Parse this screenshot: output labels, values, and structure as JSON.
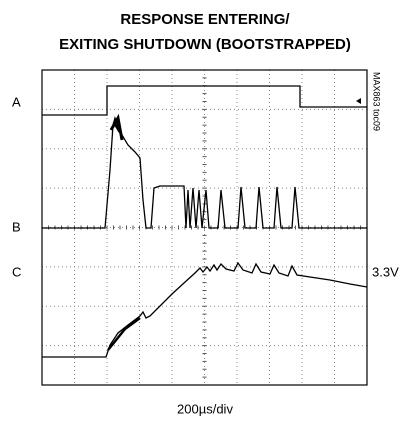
{
  "title": [
    "RESPONSE ENTERING/",
    "EXITING SHUTDOWN (BOOTSTRAPPED)"
  ],
  "channels": [
    "A",
    "B",
    "C"
  ],
  "level_label": "3.3V",
  "timebase": "200µs/div",
  "figure_id": "MAX863 toc09"
}
